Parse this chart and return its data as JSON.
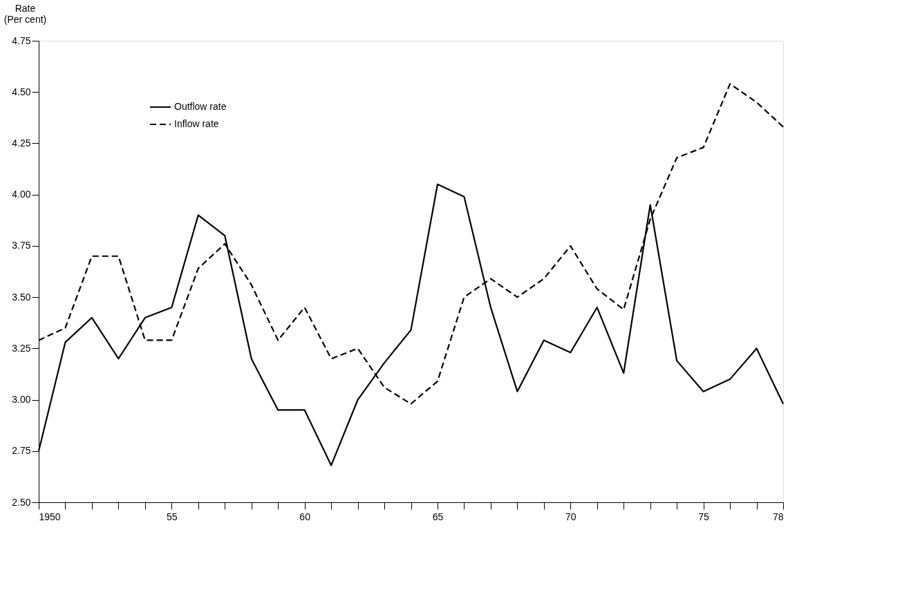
{
  "chart_data": {
    "type": "line",
    "ylabel": "Rate\n(Per cent)",
    "x": [
      1950,
      1951,
      1952,
      1953,
      1954,
      1955,
      1956,
      1957,
      1958,
      1959,
      1960,
      1961,
      1962,
      1963,
      1964,
      1965,
      1966,
      1967,
      1968,
      1969,
      1970,
      1971,
      1972,
      1973,
      1974,
      1975,
      1976,
      1977,
      1978
    ],
    "series": [
      {
        "name": "Outflow rate",
        "color": "#000000",
        "line_style": "solid",
        "values": [
          2.75,
          3.28,
          3.4,
          3.2,
          3.4,
          3.45,
          3.9,
          3.8,
          3.2,
          2.95,
          2.95,
          2.68,
          3.0,
          3.18,
          3.34,
          4.05,
          3.99,
          3.45,
          3.04,
          3.29,
          3.23,
          3.45,
          3.13,
          3.95,
          3.19,
          3.04,
          3.1,
          3.25,
          2.98
        ]
      },
      {
        "name": "Inflow rate",
        "color": "#000000",
        "line_style": "dashed",
        "values": [
          3.29,
          3.35,
          3.7,
          3.7,
          3.29,
          3.29,
          3.64,
          3.76,
          3.56,
          3.29,
          3.45,
          3.2,
          3.25,
          3.06,
          2.98,
          3.09,
          3.5,
          3.59,
          3.5,
          3.59,
          3.75,
          3.54,
          3.44,
          3.88,
          4.18,
          4.23,
          4.54,
          4.45,
          4.33
        ]
      }
    ],
    "xlim": [
      1950,
      1978
    ],
    "xticks": [
      1950,
      {
        "value": 1951,
        "label": null
      },
      {
        "value": 1952,
        "label": null
      },
      {
        "value": 1953,
        "label": null
      },
      {
        "value": 1954,
        "label": null
      },
      {
        "value": 1955,
        "label": "55"
      },
      {
        "value": 1956,
        "label": null
      },
      {
        "value": 1957,
        "label": null
      },
      {
        "value": 1958,
        "label": null
      },
      {
        "value": 1959,
        "label": null
      },
      {
        "value": 1960,
        "label": "60"
      },
      {
        "value": 1961,
        "label": null
      },
      {
        "value": 1962,
        "label": null
      },
      {
        "value": 1963,
        "label": null
      },
      {
        "value": 1964,
        "label": null
      },
      {
        "value": 1965,
        "label": "65"
      },
      {
        "value": 1966,
        "label": null
      },
      {
        "value": 1967,
        "label": null
      },
      {
        "value": 1968,
        "label": null
      },
      {
        "value": 1969,
        "label": null
      },
      {
        "value": 1970,
        "label": "70"
      },
      {
        "value": 1971,
        "label": null
      },
      {
        "value": 1972,
        "label": null
      },
      {
        "value": 1973,
        "label": null
      },
      {
        "value": 1974,
        "label": null
      },
      {
        "value": 1975,
        "label": "75"
      },
      {
        "value": 1976,
        "label": null
      },
      {
        "value": 1977,
        "label": null
      },
      {
        "value": 1978,
        "label": "78"
      }
    ],
    "ylim": [
      2.5,
      4.75
    ],
    "yticks": [
      {
        "value": 2.5,
        "label": "2.50"
      },
      {
        "value": 2.75,
        "label": "2.75"
      },
      {
        "value": 3.0,
        "label": "3.00"
      },
      {
        "value": 3.25,
        "label": "3.25"
      },
      {
        "value": 3.5,
        "label": "3.50"
      },
      {
        "value": 3.75,
        "label": "3.75"
      },
      {
        "value": 4.0,
        "label": "4.00"
      },
      {
        "value": 4.25,
        "label": "4.25"
      },
      {
        "value": 4.5,
        "label": "4.50"
      },
      {
        "value": 4.75,
        "label": "4.75"
      }
    ],
    "grid": false,
    "legend": "top left",
    "marker": "none"
  }
}
